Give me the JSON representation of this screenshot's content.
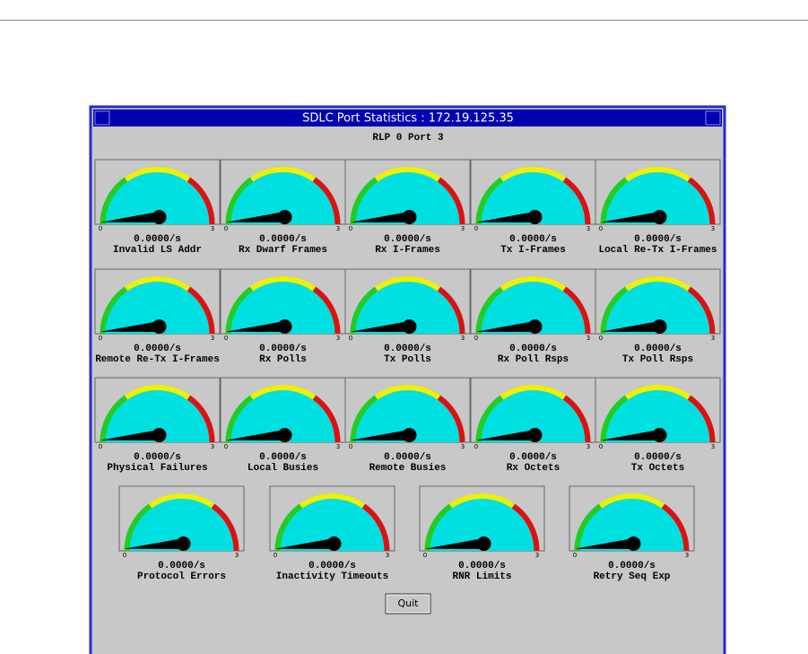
{
  "window": {
    "title": "SDLC Port Statistics : 172.19.125.35",
    "subtitle": "RLP 0 Port 3",
    "quit_button": "Quit"
  },
  "gauge_scale": {
    "min": 0,
    "max": 3
  },
  "gauges": [
    {
      "name": "Invalid LS Addr",
      "reading": "0.0000/s"
    },
    {
      "name": "Rx Dwarf Frames",
      "reading": "0.0000/s"
    },
    {
      "name": "Rx I-Frames",
      "reading": "0.0000/s"
    },
    {
      "name": "Tx I-Frames",
      "reading": "0.0000/s"
    },
    {
      "name": "Local Re-Tx I-Frames",
      "reading": "0.0000/s"
    },
    {
      "name": "Remote Re-Tx I-Frames",
      "reading": "0.0000/s"
    },
    {
      "name": "Rx Polls",
      "reading": "0.0000/s"
    },
    {
      "name": "Tx Polls",
      "reading": "0.0000/s"
    },
    {
      "name": "Rx Poll Rsps",
      "reading": "0.0000/s"
    },
    {
      "name": "Tx Poll Rsps",
      "reading": "0.0000/s"
    },
    {
      "name": "Physical Failures",
      "reading": "0.0000/s"
    },
    {
      "name": "Local Busies",
      "reading": "0.0000/s"
    },
    {
      "name": "Remote Busies",
      "reading": "0.0000/s"
    },
    {
      "name": "Rx Octets",
      "reading": "0.0000/s"
    },
    {
      "name": "Tx Octets",
      "reading": "0.0000/s"
    },
    {
      "name": "Protocol Errors",
      "reading": "0.0000/s"
    },
    {
      "name": "Inactivity Timeouts",
      "reading": "0.0000/s"
    },
    {
      "name": "RNR Limits",
      "reading": "0.0000/s"
    },
    {
      "name": "Retry Seq Exp",
      "reading": "0.0000/s"
    }
  ]
}
